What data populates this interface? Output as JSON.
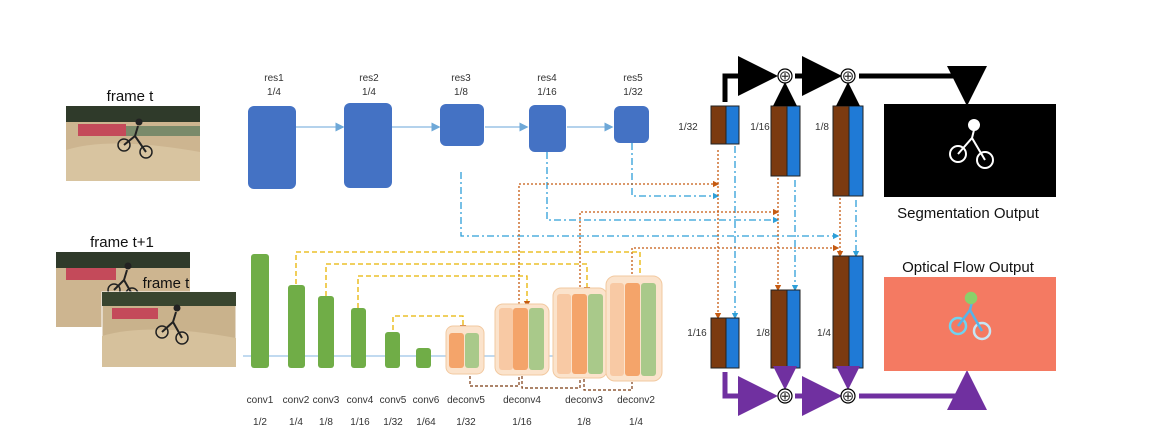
{
  "inputs": {
    "frame_t_label": "frame t",
    "frame_t1_label": "frame t+1",
    "frame_t_overlay_label": "frame t"
  },
  "encoder_top": [
    {
      "name": "res1",
      "scale": "1/4"
    },
    {
      "name": "res2",
      "scale": "1/4"
    },
    {
      "name": "res3",
      "scale": "1/8"
    },
    {
      "name": "res4",
      "scale": "1/16"
    },
    {
      "name": "res5",
      "scale": "1/32"
    }
  ],
  "encoder_bottom": [
    {
      "name": "conv1",
      "scale": "1/2"
    },
    {
      "name": "conv2",
      "scale": "1/4"
    },
    {
      "name": "conv3",
      "scale": "1/8"
    },
    {
      "name": "conv4",
      "scale": "1/16"
    },
    {
      "name": "conv5",
      "scale": "1/32"
    },
    {
      "name": "conv6",
      "scale": "1/64"
    },
    {
      "name": "deconv5",
      "scale": "1/32"
    },
    {
      "name": "deconv4",
      "scale": "1/16"
    },
    {
      "name": "deconv3",
      "scale": "1/8"
    },
    {
      "name": "deconv2",
      "scale": "1/4"
    }
  ],
  "fusion_top_scales": [
    "1/32",
    "1/16",
    "1/8"
  ],
  "fusion_bottom_scales": [
    "1/16",
    "1/8",
    "1/4"
  ],
  "outputs": {
    "segmentation_label": "Segmentation Output",
    "flow_label": "Optical Flow Output"
  },
  "symbols": {
    "add": "⊕"
  },
  "colors": {
    "encoder_blue": "#4472c4",
    "flow_green": "#70ad47",
    "deconv_orange": "#f4a46a",
    "deconv_green": "#a9c98a",
    "fusion_brown": "#7b3a10",
    "fusion_blue": "#1f7ad6",
    "seg_path_black": "#000000",
    "flow_path_purple": "#7030a0",
    "skip_blue": "#2e9fd8",
    "skip_orange": "#c55a11",
    "skip_yellow": "#e8b400"
  }
}
